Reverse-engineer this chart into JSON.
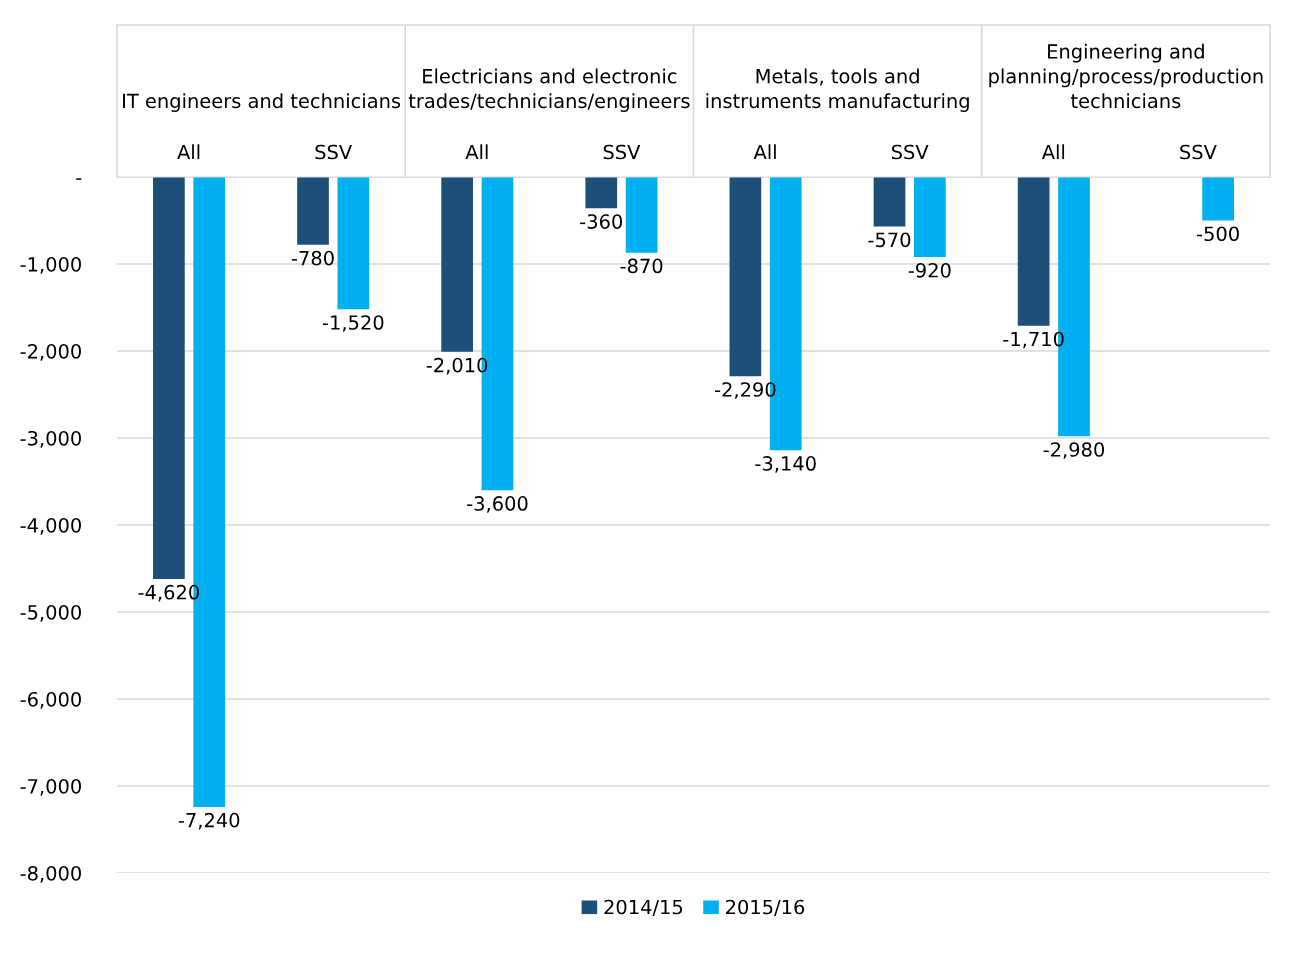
{
  "chart_data": {
    "type": "bar",
    "categories": [
      "All",
      "SSV",
      "All",
      "SSV",
      "All",
      "SSV",
      "All",
      "SSV"
    ],
    "annotations": [
      "IT engineers and technicians",
      "Electricians and electronic\ntrades/technicians/engineers",
      "Metals, tools and\ninstruments manufacturing",
      "Engineering and\nplanning/process/production\ntechnicians"
    ],
    "series": [
      {
        "name": "2014/15",
        "color": "#1f4e79",
        "values": [
          -4620,
          -780,
          -2010,
          -360,
          -2290,
          -570,
          -1710,
          null
        ],
        "value_labels": [
          "-4,620",
          "-780",
          "-2,010",
          "-360",
          "-2,290",
          "-570",
          "-1,710",
          null
        ]
      },
      {
        "name": "2015/16",
        "color": "#00b0f0",
        "values": [
          -7240,
          -1520,
          -3600,
          -870,
          -3140,
          -920,
          -2980,
          -500
        ],
        "value_labels": [
          "-7,240",
          "-1,520",
          "-3,600",
          "-870",
          "-3,140",
          "-920",
          "-2,980",
          "-500"
        ]
      }
    ],
    "ylim": [
      -8000,
      0
    ],
    "yticks": [
      {
        "value": -8000,
        "label": "-8,000"
      },
      {
        "value": -7000,
        "label": "-7,000"
      },
      {
        "value": -6000,
        "label": "-6,000"
      },
      {
        "value": -5000,
        "label": "-5,000"
      },
      {
        "value": -4000,
        "label": "-4,000"
      },
      {
        "value": -3000,
        "label": "-3,000"
      },
      {
        "value": -2000,
        "label": "-2,000"
      },
      {
        "value": -1000,
        "label": "-1,000"
      },
      {
        "value": 0,
        "label": "-"
      }
    ],
    "grid": "y",
    "legend": "bottom"
  }
}
